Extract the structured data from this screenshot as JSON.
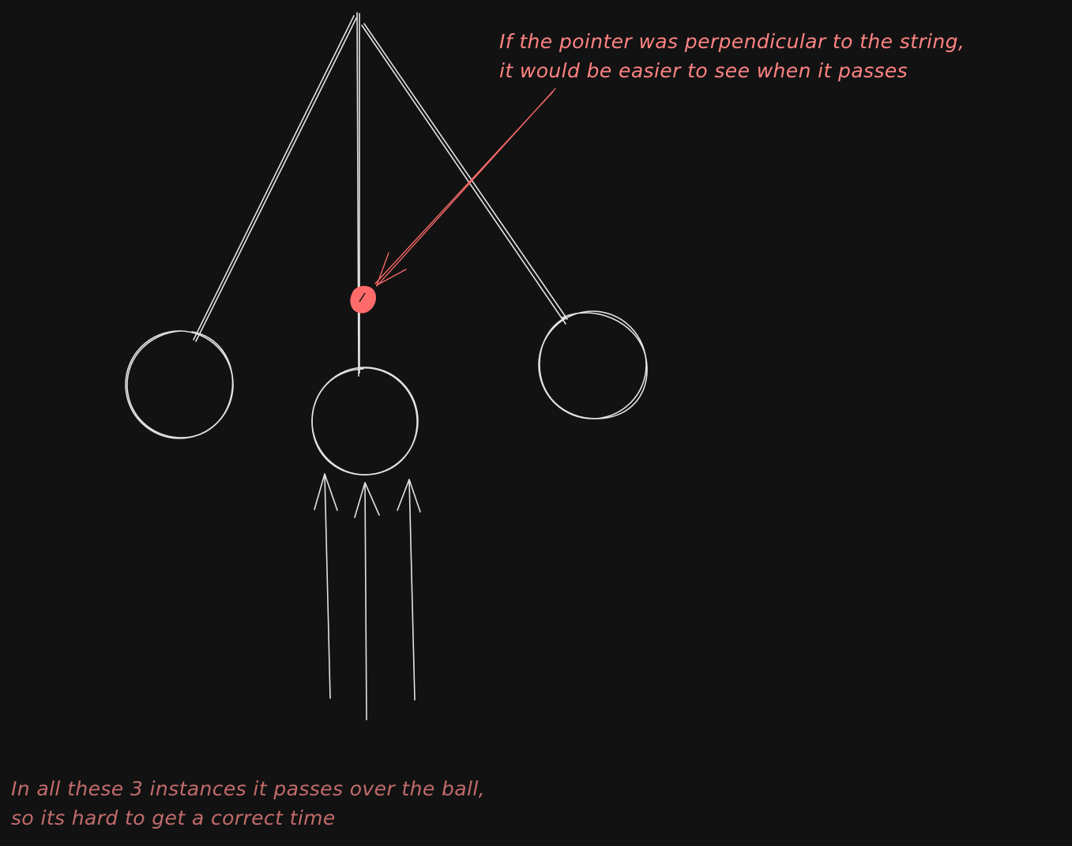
{
  "annotations": {
    "top_note": {
      "lines": [
        "If the pointer was perpendicular to the string,",
        "it would be easier to see when it passes"
      ],
      "color": "#ff8383"
    },
    "bottom_note": {
      "lines": [
        "In all these 3 instances it passes over the ball,",
        "so its hard to get a correct time"
      ],
      "color": "#c26b6b"
    }
  },
  "colors": {
    "background": "#121212",
    "stroke": "#e3e3e3",
    "pointer": "#ff6b6b"
  }
}
